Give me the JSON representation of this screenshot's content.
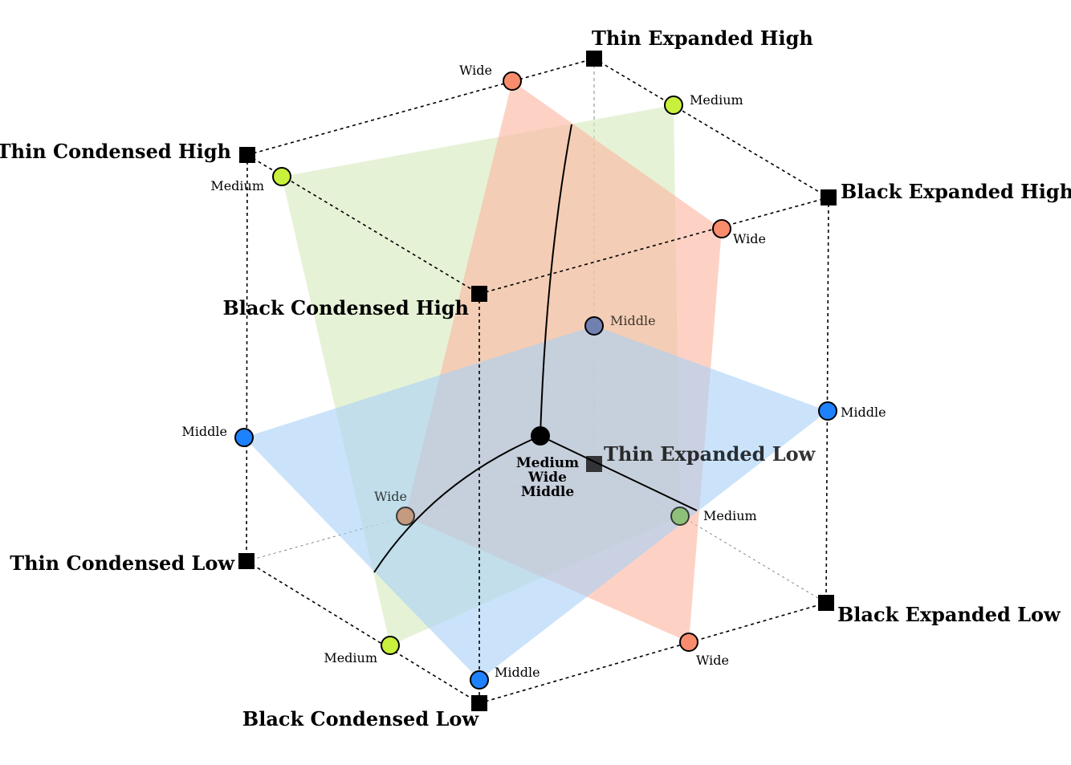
{
  "colors": {
    "medium": "#c8f03c",
    "wide": "#fa8c6e",
    "middle": "#1e82ff",
    "plane_medium": "#d6e9bb",
    "plane_wide": "#fbb49e",
    "plane_middle": "#a9d0f7"
  },
  "corners": {
    "thin_expanded_high": "Thin Expanded High",
    "thin_condensed_high": "Thin Condensed High",
    "black_expanded_high": "Black Expanded High",
    "black_condensed_high": "Black Condensed High",
    "thin_expanded_low": "Thin Expanded Low",
    "thin_condensed_low": "Thin Condensed Low",
    "black_expanded_low": "Black Expanded Low",
    "black_condensed_low": "Black Condensed Low"
  },
  "points": {
    "wide_top": "Wide",
    "medium_top_right": "Medium",
    "medium_top_left": "Medium",
    "wide_right": "Wide",
    "middle_back": "Middle",
    "middle_left": "Middle",
    "middle_right": "Middle",
    "wide_back_left": "Wide",
    "medium_back_right": "Medium",
    "medium_bottom_left": "Medium",
    "middle_bottom": "Middle",
    "wide_bottom_right": "Wide"
  },
  "center": {
    "line1": "Medium",
    "line2": "Wide",
    "line3": "Middle"
  }
}
